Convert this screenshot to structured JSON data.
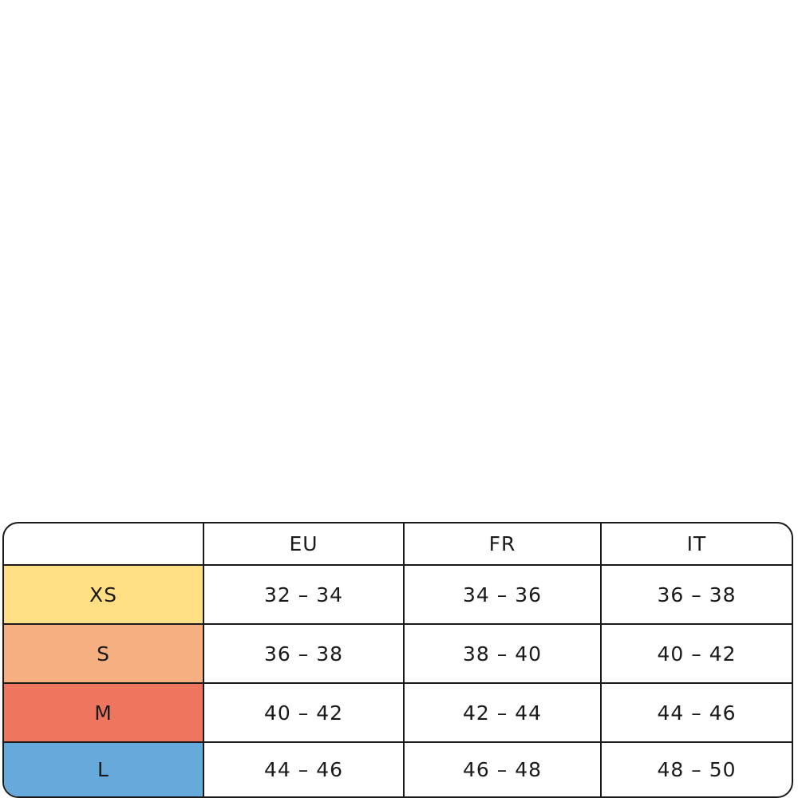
{
  "table": {
    "headers": [
      "",
      "EU",
      "FR",
      "IT"
    ],
    "rows": [
      {
        "size": "XS",
        "color": "#FEDF83",
        "values": [
          "32 – 34",
          "34 – 36",
          "36 – 38"
        ]
      },
      {
        "size": "S",
        "color": "#F5AF80",
        "values": [
          "36 – 38",
          "38 – 40",
          "40 – 42"
        ]
      },
      {
        "size": "M",
        "color": "#EE765E",
        "values": [
          "40 – 42",
          "42 – 44",
          "44 – 46"
        ]
      },
      {
        "size": "L",
        "color": "#66AADB",
        "values": [
          "44 – 46",
          "46 – 48",
          "48 – 50"
        ]
      }
    ]
  }
}
